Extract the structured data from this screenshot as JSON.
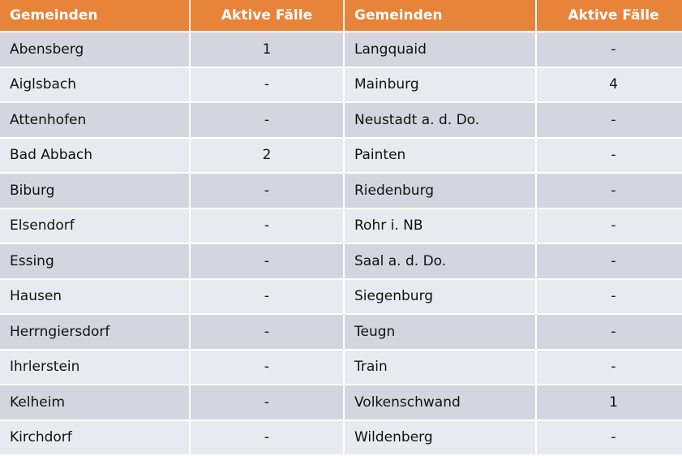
{
  "headers": [
    "Gemeinden",
    "Aktive Fälle",
    "Gemeinden",
    "Aktive Fälle"
  ],
  "colors": {
    "header": "#E8833A",
    "row_odd": "#D4D6DF",
    "row_even": "#E9EAEF"
  },
  "rows": [
    [
      "Abensberg",
      "1",
      "Langquaid",
      "-"
    ],
    [
      "Aiglsbach",
      "-",
      "Mainburg",
      "4"
    ],
    [
      "Attenhofen",
      "-",
      "Neustadt a. d. Do.",
      "-"
    ],
    [
      "Bad Abbach",
      "2",
      "Painten",
      "-"
    ],
    [
      "Biburg",
      "-",
      "Riedenburg",
      "-"
    ],
    [
      "Elsendorf",
      "-",
      "Rohr i. NB",
      "-"
    ],
    [
      "Essing",
      "-",
      "Saal a. d. Do.",
      "-"
    ],
    [
      "Hausen",
      "-",
      "Siegenburg",
      "-"
    ],
    [
      "Herrngiersdorf",
      "-",
      "Teugn",
      "-"
    ],
    [
      "Ihrlerstein",
      "-",
      "Train",
      "-"
    ],
    [
      "Kelheim",
      "-",
      "Volkenschwand",
      "1"
    ],
    [
      "Kirchdorf",
      "-",
      "Wildenberg",
      "-"
    ]
  ]
}
